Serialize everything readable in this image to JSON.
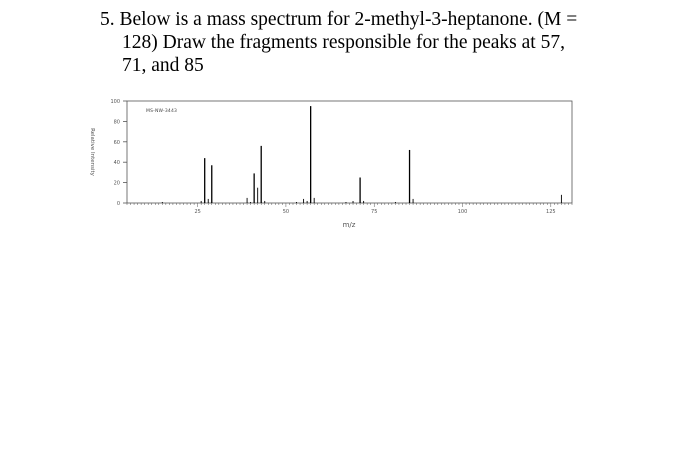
{
  "question": {
    "line1": "5. Below is a mass spectrum for 2-methyl-3-heptanone. (M =",
    "line2": "128) Draw the fragments responsible for the peaks at 57,",
    "line3": "71, and 85"
  },
  "colors": {
    "text": "#000000",
    "axis": "#555555",
    "peaks": "#000000"
  },
  "chart_data": {
    "type": "bar",
    "title": "",
    "code_label": "MS-NW-3443",
    "xlabel": "m/z",
    "ylabel": "Relative Intensity",
    "xlim": [
      5,
      131
    ],
    "ylim": [
      0,
      100
    ],
    "x_ticks": [
      25,
      50,
      75,
      100,
      125
    ],
    "y_ticks": [
      0,
      20,
      40,
      60,
      80,
      100
    ],
    "grid": false,
    "peaks": [
      {
        "x": 15,
        "y": 1
      },
      {
        "x": 26,
        "y": 2
      },
      {
        "x": 27,
        "y": 44
      },
      {
        "x": 28,
        "y": 4
      },
      {
        "x": 29,
        "y": 37
      },
      {
        "x": 39,
        "y": 5
      },
      {
        "x": 40,
        "y": 1
      },
      {
        "x": 41,
        "y": 29
      },
      {
        "x": 42,
        "y": 15
      },
      {
        "x": 43,
        "y": 56
      },
      {
        "x": 44,
        "y": 2
      },
      {
        "x": 53,
        "y": 1
      },
      {
        "x": 55,
        "y": 4
      },
      {
        "x": 56,
        "y": 2
      },
      {
        "x": 57,
        "y": 95
      },
      {
        "x": 58,
        "y": 5
      },
      {
        "x": 67,
        "y": 1
      },
      {
        "x": 69,
        "y": 2
      },
      {
        "x": 71,
        "y": 25
      },
      {
        "x": 72,
        "y": 2
      },
      {
        "x": 81,
        "y": 1
      },
      {
        "x": 85,
        "y": 52
      },
      {
        "x": 86,
        "y": 4
      },
      {
        "x": 128,
        "y": 8
      }
    ]
  }
}
